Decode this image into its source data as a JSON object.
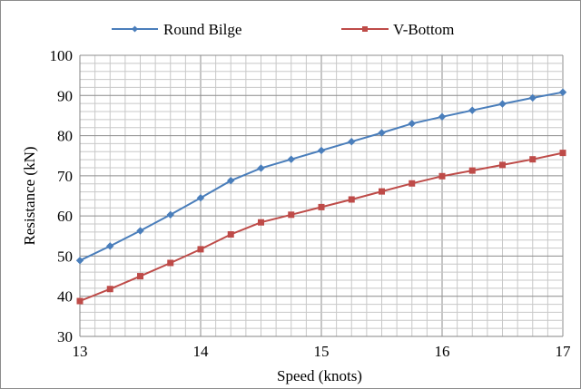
{
  "chart_data": {
    "type": "line",
    "title": "",
    "xlabel": "Speed (knots)",
    "ylabel": "Resistance (kN)",
    "xlim": [
      13,
      17
    ],
    "ylim": [
      30,
      100
    ],
    "x_major_ticks": [
      "13",
      "14",
      "15",
      "16",
      "17"
    ],
    "y_major_ticks": [
      "30",
      "40",
      "50",
      "60",
      "70",
      "80",
      "90",
      "100"
    ],
    "grid": true,
    "legend_position": "top",
    "x": [
      13,
      13.25,
      13.5,
      13.75,
      14,
      14.25,
      14.5,
      14.75,
      15,
      15.25,
      15.5,
      15.75,
      16,
      16.25,
      16.5,
      16.75,
      17
    ],
    "series": [
      {
        "name": "Round Bilge",
        "color": "#4a7ebb",
        "marker": "diamond",
        "values": [
          48.9,
          52.5,
          56.3,
          60.3,
          64.5,
          68.8,
          71.9,
          74.1,
          76.3,
          78.5,
          80.7,
          83.0,
          84.7,
          86.3,
          87.9,
          89.4,
          90.8
        ]
      },
      {
        "name": "V-Bottom",
        "color": "#be4b48",
        "marker": "square",
        "values": [
          38.8,
          41.8,
          45.0,
          48.3,
          51.7,
          55.4,
          58.4,
          60.3,
          62.2,
          64.1,
          66.1,
          68.1,
          69.9,
          71.3,
          72.7,
          74.1,
          75.7
        ]
      }
    ]
  }
}
